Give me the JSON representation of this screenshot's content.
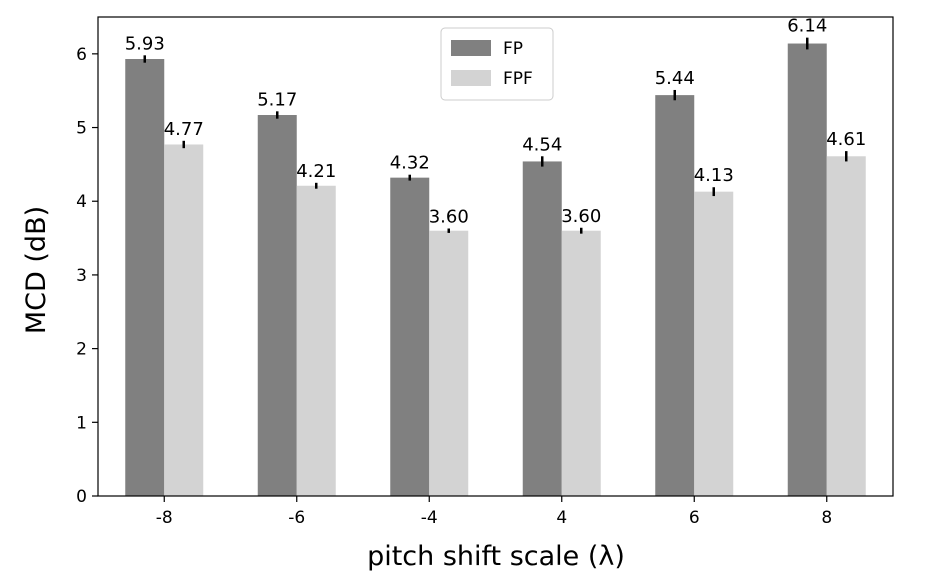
{
  "chart_data": {
    "type": "bar",
    "categories": [
      "-8",
      "-6",
      "-4",
      "4",
      "6",
      "8"
    ],
    "series": [
      {
        "name": "FP",
        "color": "#808080",
        "values": [
          5.93,
          5.17,
          4.32,
          4.54,
          5.44,
          6.14
        ],
        "errors": [
          0.05,
          0.05,
          0.04,
          0.07,
          0.07,
          0.08
        ],
        "value_labels": [
          "5.93",
          "5.17",
          "4.32",
          "4.54",
          "5.44",
          "6.14"
        ]
      },
      {
        "name": "FPF",
        "color": "#d3d3d3",
        "values": [
          4.77,
          4.21,
          3.6,
          3.6,
          4.13,
          4.61
        ],
        "errors": [
          0.05,
          0.04,
          0.03,
          0.04,
          0.06,
          0.07
        ],
        "value_labels": [
          "4.77",
          "4.21",
          "3.60",
          "3.60",
          "4.13",
          "4.61"
        ]
      }
    ],
    "xlabel": "pitch shift scale (λ)",
    "ylabel": "MCD (dB)",
    "ylim": [
      0,
      6.5
    ],
    "yticks": [
      "0",
      "1",
      "2",
      "3",
      "4",
      "5",
      "6"
    ],
    "legend": "top-center",
    "grid": false
  }
}
